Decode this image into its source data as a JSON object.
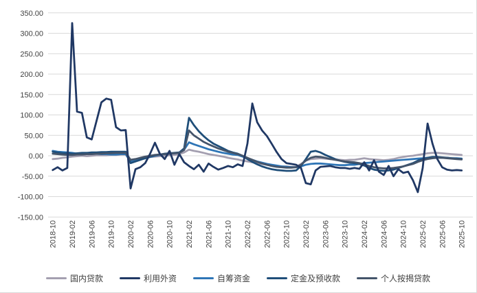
{
  "chart_data": {
    "type": "line",
    "title": "",
    "xlabel": "",
    "ylabel": "",
    "ylim": [
      -150,
      350
    ],
    "y_tick_step": 50,
    "y_tick_labels": [
      "350.00",
      "300.00",
      "250.00",
      "200.00",
      "150.00",
      "100.00",
      "50.00",
      "0.00",
      "-50.00",
      "-100.00",
      "-150.00"
    ],
    "y_tick_values": [
      350,
      300,
      250,
      200,
      150,
      100,
      50,
      0,
      -50,
      -100,
      -150
    ],
    "x_tick_every": 4,
    "grid": "horizontal",
    "legend_position": "bottom",
    "grid_color": "#d9d9d9",
    "axis_text_color": "#404040",
    "categories": [
      "2018-10",
      "2018-11",
      "2018-12",
      "2019-01",
      "2019-02",
      "2019-03",
      "2019-04",
      "2019-05",
      "2019-06",
      "2019-07",
      "2019-08",
      "2019-09",
      "2019-10",
      "2019-11",
      "2019-12",
      "2020-01",
      "2020-02",
      "2020-03",
      "2020-04",
      "2020-05",
      "2020-06",
      "2020-07",
      "2020-08",
      "2020-09",
      "2020-10",
      "2020-11",
      "2020-12",
      "2021-01",
      "2021-02",
      "2021-03",
      "2021-04",
      "2021-05",
      "2021-06",
      "2021-07",
      "2021-08",
      "2021-09",
      "2021-10",
      "2021-11",
      "2021-12",
      "2022-01",
      "2022-02",
      "2022-03",
      "2022-04",
      "2022-05",
      "2022-06",
      "2022-07",
      "2022-08",
      "2022-09",
      "2022-10",
      "2022-11",
      "2022-12",
      "2023-01",
      "2023-02",
      "2023-03",
      "2023-04",
      "2023-05",
      "2023-06",
      "2023-07",
      "2023-08",
      "2023-09",
      "2023-10",
      "2023-11",
      "2023-12",
      "2024-01",
      "2024-02",
      "2024-03",
      "2024-04",
      "2024-05",
      "2024-06",
      "2024-07",
      "2024-08",
      "2024-09",
      "2024-10",
      "2024-11",
      "2024-12",
      "2025-01",
      "2025-02",
      "2025-03",
      "2025-04",
      "2025-05",
      "2025-06",
      "2025-07",
      "2025-08",
      "2025-09",
      "2025-10"
    ],
    "series": [
      {
        "key": "domestic-loans",
        "name": "国内贷款",
        "color": "#a49fb0",
        "values": [
          -8,
          -7,
          -5,
          -4,
          -2,
          -1,
          0,
          -1,
          0,
          1,
          1,
          1,
          2,
          2,
          3,
          3,
          -13,
          -10,
          -8,
          -5,
          -3,
          -2,
          -1,
          0,
          1,
          2,
          4,
          8,
          15,
          12,
          10,
          7,
          4,
          2,
          0,
          -2,
          -5,
          -7,
          -9,
          -12,
          -14,
          -16,
          -18,
          -20,
          -22,
          -24,
          -25,
          -26,
          -26,
          -27,
          -27,
          -20,
          -12,
          -8,
          -7,
          -6,
          -7,
          -8,
          -9,
          -10,
          -11,
          -10,
          -10,
          -8,
          -6,
          -8,
          -9,
          -10,
          -11,
          -10,
          -8,
          -5,
          -3,
          -1,
          0,
          2,
          4,
          6,
          7,
          7,
          6,
          5,
          4,
          3,
          2
        ]
      },
      {
        "key": "self-raised-funds",
        "name": "自筹资金",
        "color": "#2e75b6",
        "values": [
          12,
          10,
          9,
          8,
          7,
          5,
          5,
          4,
          5,
          5,
          4,
          4,
          3,
          3,
          4,
          4,
          -15,
          -12,
          -9,
          -6,
          -3,
          0,
          2,
          4,
          5,
          6,
          7,
          15,
          33,
          28,
          24,
          20,
          16,
          13,
          10,
          7,
          5,
          3,
          2,
          -2,
          -6,
          -10,
          -14,
          -17,
          -20,
          -22,
          -24,
          -26,
          -27,
          -28,
          -28,
          -26,
          -22,
          -20,
          -19,
          -19,
          -20,
          -21,
          -22,
          -23,
          -23,
          -22,
          -22,
          -20,
          -18,
          -17,
          -16,
          -15,
          -14,
          -13,
          -12,
          -11,
          -10,
          -9,
          -8,
          -7,
          -6,
          -5,
          -4,
          -4,
          -5,
          -5,
          -6,
          -6,
          -7
        ]
      },
      {
        "key": "deposits-advance-payments",
        "name": "定金及预收款",
        "color": "#1f4e79",
        "values": [
          10,
          8,
          6,
          6,
          5,
          6,
          7,
          7,
          8,
          8,
          9,
          9,
          10,
          10,
          10,
          10,
          -18,
          -14,
          -10,
          -6,
          -2,
          1,
          3,
          5,
          6,
          7,
          8,
          18,
          93,
          75,
          60,
          48,
          38,
          30,
          24,
          18,
          12,
          8,
          5,
          0,
          -8,
          -15,
          -21,
          -26,
          -30,
          -33,
          -35,
          -36,
          -37,
          -37,
          -36,
          -25,
          -8,
          10,
          12,
          8,
          2,
          -3,
          -8,
          -12,
          -15,
          -17,
          -18,
          -20,
          -24,
          -30,
          -34,
          -36,
          -37,
          -36,
          -34,
          -30,
          -26,
          -22,
          -18,
          -12,
          -8,
          -5,
          -3,
          -3,
          -4,
          -5,
          -6,
          -7,
          -8
        ]
      },
      {
        "key": "personal-mortgage-loans",
        "name": "个人按揭贷款",
        "color": "#44546a",
        "values": [
          5,
          4,
          3,
          2,
          2,
          3,
          3,
          4,
          4,
          5,
          5,
          6,
          6,
          7,
          7,
          7,
          -10,
          -8,
          -5,
          -2,
          0,
          2,
          3,
          4,
          5,
          6,
          7,
          14,
          62,
          50,
          42,
          34,
          28,
          23,
          18,
          14,
          10,
          7,
          4,
          0,
          -5,
          -10,
          -15,
          -19,
          -22,
          -25,
          -27,
          -28,
          -29,
          -29,
          -28,
          -22,
          -12,
          -5,
          -2,
          -3,
          -5,
          -8,
          -10,
          -12,
          -14,
          -15,
          -16,
          -18,
          -21,
          -25,
          -28,
          -30,
          -31,
          -31,
          -30,
          -28,
          -26,
          -23,
          -20,
          -15,
          -11,
          -8,
          -6,
          -5,
          -5,
          -6,
          -7,
          -8,
          -9
        ]
      },
      {
        "key": "foreign-capital",
        "name": "利用外资",
        "color": "#203864",
        "values": [
          -35,
          -28,
          -36,
          -30,
          325,
          108,
          105,
          45,
          40,
          85,
          131,
          140,
          137,
          70,
          62,
          63,
          -80,
          -33,
          -28,
          -18,
          5,
          32,
          5,
          -8,
          12,
          -22,
          4,
          -16,
          -25,
          -33,
          -22,
          -39,
          -19,
          -27,
          -34,
          -30,
          -25,
          -28,
          -21,
          -25,
          30,
          128,
          82,
          62,
          48,
          29,
          9,
          -8,
          -18,
          -20,
          -22,
          -30,
          -67,
          -70,
          -36,
          -27,
          -26,
          -25,
          -28,
          -30,
          -30,
          -32,
          -30,
          -32,
          -16,
          -36,
          -11,
          -39,
          -47,
          -25,
          -50,
          -33,
          -42,
          -39,
          -60,
          -89,
          -30,
          79,
          30,
          -8,
          -28,
          -34,
          -36,
          -35,
          -36
        ]
      }
    ],
    "legend_order": [
      "国内贷款",
      "利用外资",
      "自筹资金",
      "定金及预收款",
      "个人按揭贷款"
    ]
  }
}
